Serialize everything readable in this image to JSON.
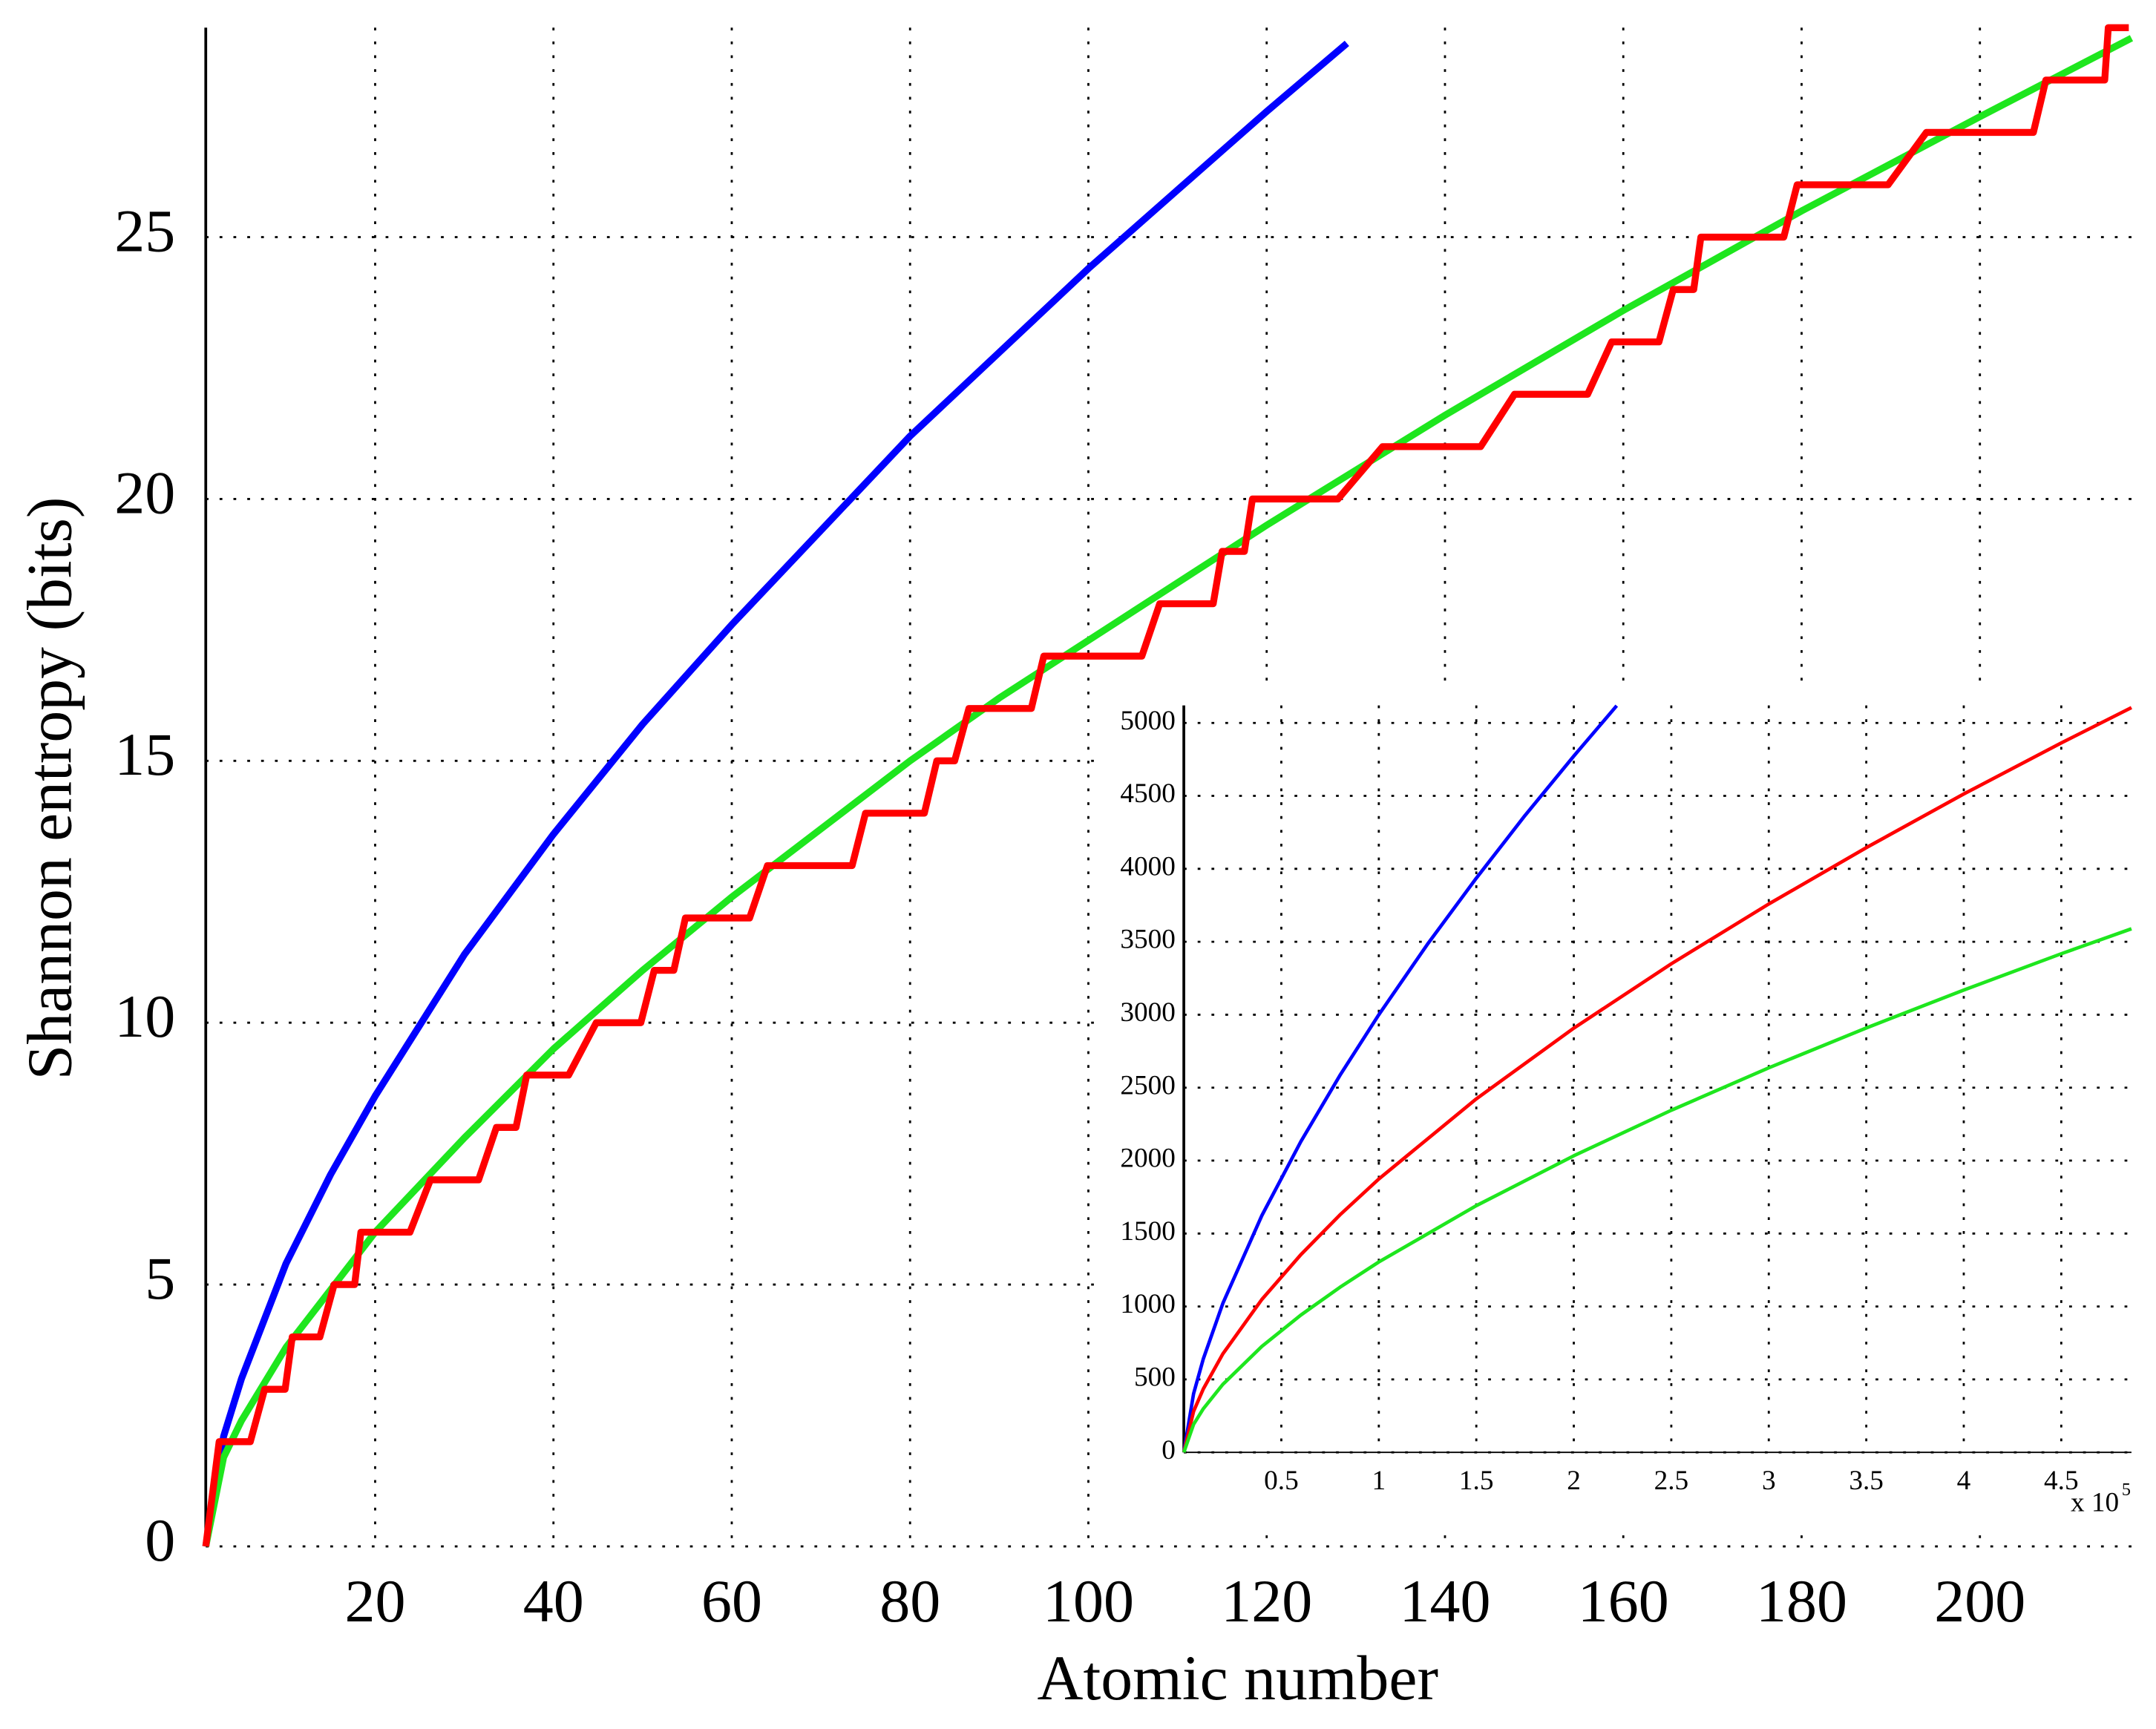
{
  "chart_data": [
    {
      "type": "line",
      "xlabel": "Atomic number",
      "ylabel": "Shannon entropy (bits)",
      "xlim": [
        1,
        217
      ],
      "ylim": [
        0,
        29
      ],
      "xticks": [
        20,
        40,
        60,
        80,
        100,
        120,
        140,
        160,
        180,
        200
      ],
      "yticks": [
        0,
        5,
        10,
        15,
        20,
        25
      ],
      "grid": true,
      "series": [
        {
          "color": "#0000ff",
          "x": [
            1,
            3,
            5,
            10,
            15,
            20,
            30,
            40,
            50,
            60,
            70,
            80,
            90,
            100,
            110,
            120,
            129
          ],
          "values": [
            0,
            2.1,
            3.2,
            5.4,
            7.1,
            8.6,
            11.3,
            13.6,
            15.7,
            17.6,
            19.4,
            21.2,
            22.8,
            24.4,
            25.9,
            27.4,
            28.7
          ]
        },
        {
          "color": "#1ee61e",
          "x": [
            1,
            3,
            5,
            10,
            20,
            30,
            40,
            50,
            60,
            70,
            80,
            90,
            100,
            120,
            140,
            160,
            180,
            200,
            217
          ],
          "values": [
            0,
            1.7,
            2.4,
            3.8,
            6.0,
            7.8,
            9.5,
            11.0,
            12.4,
            13.7,
            15.0,
            16.2,
            17.3,
            19.5,
            21.6,
            23.6,
            25.5,
            27.3,
            28.8
          ]
        },
        {
          "color": "#ff0000",
          "x": [
            1,
            2.5,
            6,
            7.6,
            9.9,
            10.7,
            13.8,
            15.4,
            17.7,
            18.4,
            23.9,
            26.2,
            31.6,
            33.6,
            35.8,
            37,
            41.7,
            44.8,
            49.8,
            51.3,
            53.5,
            54.8,
            62,
            64,
            73.5,
            75,
            81.6,
            83,
            85,
            86.6,
            93.6,
            95,
            106,
            108,
            114,
            115,
            117.5,
            118.4,
            128,
            133,
            144,
            147.8,
            156,
            158.7,
            164,
            165.6,
            167.9,
            168.7,
            178,
            179.5,
            189.7,
            194,
            206,
            207.4,
            214,
            214.4,
            216.7
          ],
          "values": [
            0,
            2,
            2,
            3,
            3,
            4,
            4,
            5,
            5,
            6,
            6,
            7,
            7,
            8,
            8,
            9,
            9,
            10,
            10,
            11,
            11,
            12,
            12,
            13,
            13,
            14,
            14,
            15,
            15,
            16,
            16,
            17,
            17,
            18,
            18,
            19,
            19,
            20,
            20,
            21,
            21,
            22,
            22,
            23,
            23,
            24,
            24,
            25,
            25,
            26,
            26,
            27,
            27,
            28,
            28,
            29,
            29
          ]
        }
      ]
    },
    {
      "type": "line",
      "xlim": [
        0,
        4.86
      ],
      "ylim": [
        0,
        5120
      ],
      "xticks": [
        0.5,
        1,
        1.5,
        2,
        2.5,
        3,
        3.5,
        4,
        4.5
      ],
      "yticks": [
        0,
        500,
        1000,
        1500,
        2000,
        2500,
        3000,
        3500,
        4000,
        4500,
        5000
      ],
      "grid": true,
      "x_multiplier": "x 10",
      "x_multiplier_exponent": "5",
      "series": [
        {
          "color": "#0000ff",
          "x": [
            0,
            0.05,
            0.1,
            0.2,
            0.4,
            0.6,
            0.8,
            1,
            1.25,
            1.5,
            1.75,
            2,
            2.22
          ],
          "values": [
            0,
            402,
            641,
            1021,
            1623,
            2130,
            2583,
            3000,
            3484,
            3936,
            4366,
            4773,
            5118
          ]
        },
        {
          "color": "#ff0000",
          "x": [
            0,
            0.05,
            0.1,
            0.2,
            0.4,
            0.6,
            0.8,
            1,
            1.5,
            2,
            2.5,
            3,
            3.5,
            4,
            4.5,
            4.86
          ],
          "values": [
            0,
            281,
            435,
            675,
            1048,
            1355,
            1627,
            1874,
            2423,
            2908,
            3349,
            3759,
            4145,
            4513,
            4863,
            5105
          ]
        },
        {
          "color": "#1ee61e",
          "x": [
            0,
            0.05,
            0.1,
            0.2,
            0.4,
            0.6,
            0.8,
            1,
            1.5,
            2,
            2.5,
            3,
            3.5,
            4,
            4.5,
            4.86
          ],
          "values": [
            0,
            192,
            299,
            466,
            726,
            941,
            1131,
            1305,
            1691,
            2033,
            2345,
            2636,
            2909,
            3169,
            3418,
            3589
          ]
        }
      ]
    }
  ]
}
